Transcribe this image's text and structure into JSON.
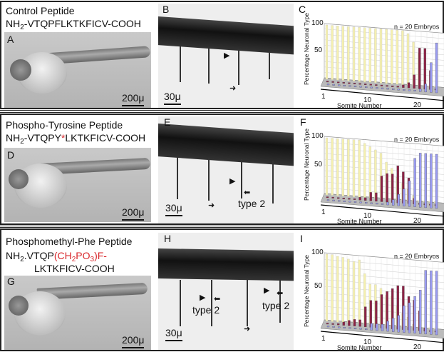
{
  "panels": [
    {
      "title": "Control Peptide",
      "seq_prefix": "NH",
      "seq_sub": "2",
      "seq_rest": "-VTQPFLKTKFICV-COOH",
      "photo_label": "A",
      "photo_scale": "200μ",
      "micro_label": "B",
      "micro_scale": "30μ",
      "chart_label": "C"
    },
    {
      "title": "Phospho-Tyrosine Peptide",
      "seq_prefix": "NH",
      "seq_sub": "2",
      "seq_a": "-VTQPY",
      "seq_red": "*",
      "seq_b": "LKTKFICV-COOH",
      "photo_label": "D",
      "photo_scale": "200μ",
      "micro_label": "E",
      "micro_scale": "30μ",
      "micro_annotation": "type 2",
      "chart_label": "F"
    },
    {
      "title": "Phosphomethyl-Phe Peptide",
      "seq_prefix": "NH",
      "seq_sub": "2",
      "seq_a": ".VTQP",
      "seq_red1": "(CH",
      "seq_red_sub1": "2",
      "seq_red2": "PO",
      "seq_red_sub2": "3",
      "seq_red3": ")F-",
      "seq_line2": "LKTKFICV-COOH",
      "photo_label": "G",
      "photo_scale": "200μ",
      "micro_label": "H",
      "micro_scale": "30μ",
      "micro_annotation_1": "type 2",
      "micro_annotation_2": "type 2",
      "chart_label": "I"
    }
  ],
  "colors": {
    "yellow": "#f5f0b0",
    "red": "#8e2246",
    "blue": "#9a9cf2",
    "accent": "#d8262a"
  },
  "chart_data": [
    {
      "type": "bar",
      "title": "n = 20 Embryos",
      "xlabel": "Somite Number",
      "ylabel": "Percentage Neuronal Type",
      "yticks": [
        "100",
        "50"
      ],
      "xticks": [
        "1",
        "10",
        "20"
      ],
      "ylim": [
        0,
        100
      ],
      "x": [
        1,
        2,
        3,
        4,
        5,
        6,
        7,
        8,
        9,
        10,
        11,
        12,
        13,
        14,
        15,
        16,
        17,
        18,
        19,
        20,
        21
      ],
      "series": [
        {
          "name": "yellow",
          "values": [
            100,
            100,
            100,
            100,
            100,
            100,
            100,
            100,
            100,
            100,
            100,
            100,
            100,
            100,
            100,
            95,
            80,
            60,
            0,
            0,
            0
          ]
        },
        {
          "name": "red",
          "values": [
            0,
            0,
            0,
            0,
            0,
            0,
            0,
            0,
            0,
            0,
            0,
            0,
            0,
            2,
            5,
            10,
            25,
            75,
            75,
            35,
            0
          ]
        },
        {
          "name": "blue",
          "values": [
            0,
            0,
            0,
            0,
            0,
            0,
            0,
            0,
            0,
            0,
            0,
            0,
            0,
            0,
            0,
            0,
            0,
            5,
            15,
            55,
            92
          ]
        }
      ]
    },
    {
      "type": "bar",
      "title": "n = 20 Embryos",
      "xlabel": "Somite Number",
      "ylabel": "Percentage Neuronal Type",
      "yticks": [
        "100",
        "50"
      ],
      "xticks": [
        "1",
        "10",
        "20"
      ],
      "ylim": [
        0,
        100
      ],
      "x": [
        1,
        2,
        3,
        4,
        5,
        6,
        7,
        8,
        9,
        10,
        11,
        12,
        13,
        14,
        15,
        16,
        17,
        18,
        19,
        20,
        21
      ],
      "series": [
        {
          "name": "yellow",
          "values": [
            100,
            100,
            100,
            100,
            100,
            100,
            100,
            95,
            90,
            85,
            80,
            65,
            55,
            40,
            30,
            20,
            10,
            0,
            0,
            0,
            0
          ]
        },
        {
          "name": "red",
          "values": [
            0,
            0,
            0,
            0,
            0,
            0,
            5,
            5,
            15,
            15,
            45,
            50,
            50,
            65,
            55,
            45,
            10,
            0,
            0,
            0,
            0
          ]
        },
        {
          "name": "blue",
          "values": [
            0,
            0,
            0,
            0,
            0,
            0,
            0,
            0,
            0,
            0,
            0,
            5,
            10,
            20,
            30,
            45,
            85,
            95,
            95,
            95,
            95
          ]
        }
      ]
    },
    {
      "type": "bar",
      "title": "n = 20 Embryos",
      "xlabel": "Somite Number",
      "ylabel": "Percentage Neuronal Type",
      "yticks": [
        "100",
        "50"
      ],
      "xticks": [
        "1",
        "10",
        "20"
      ],
      "ylim": [
        0,
        100
      ],
      "x": [
        1,
        2,
        3,
        4,
        5,
        6,
        7,
        8,
        9,
        10,
        11,
        12,
        13,
        14,
        15,
        16,
        17,
        18,
        19,
        20,
        21
      ],
      "series": [
        {
          "name": "yellow",
          "values": [
            100,
            100,
            98,
            97,
            95,
            92,
            95,
            75,
            60,
            60,
            55,
            45,
            45,
            30,
            20,
            15,
            5,
            0,
            0,
            0,
            0
          ]
        },
        {
          "name": "red",
          "values": [
            0,
            0,
            2,
            5,
            8,
            10,
            10,
            30,
            40,
            40,
            50,
            55,
            60,
            65,
            65,
            50,
            45,
            30,
            5,
            0,
            0
          ]
        },
        {
          "name": "blue",
          "values": [
            0,
            0,
            0,
            0,
            0,
            0,
            0,
            0,
            10,
            10,
            10,
            15,
            20,
            25,
            40,
            45,
            55,
            65,
            95,
            95,
            95
          ]
        }
      ]
    }
  ]
}
